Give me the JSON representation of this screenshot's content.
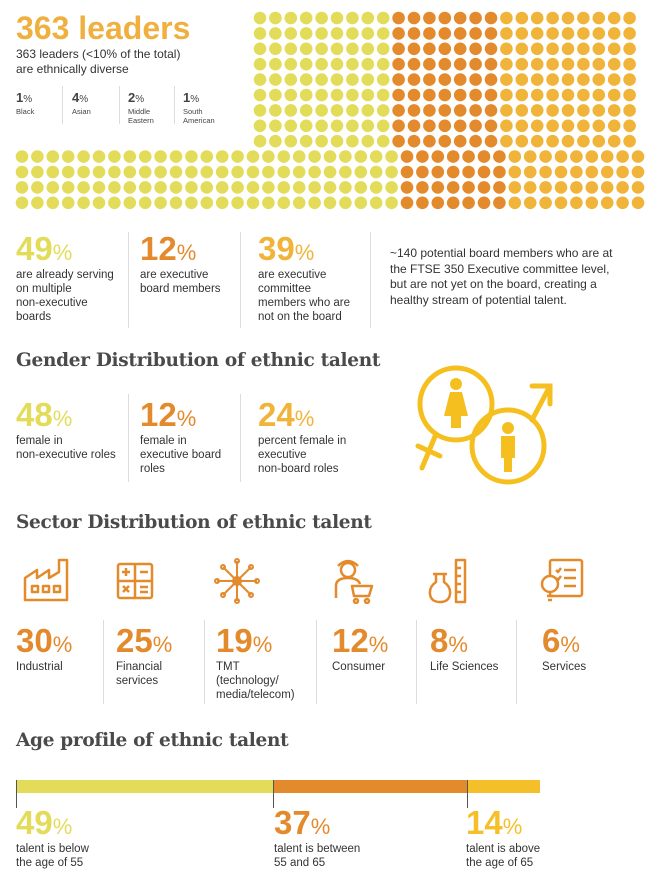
{
  "header": {
    "title": "363 leaders",
    "subtitle_line1": "363 leaders (<10% of the total)",
    "subtitle_line2": "are ethnically diverse",
    "breakdown": [
      {
        "num": "1",
        "pct": "%",
        "label1": "Black",
        "label2": ""
      },
      {
        "num": "4",
        "pct": "%",
        "label1": "Asian",
        "label2": ""
      },
      {
        "num": "2",
        "pct": "%",
        "label1": "Middle",
        "label2": "Eastern"
      },
      {
        "num": "1",
        "pct": "%",
        "label1": "South",
        "label2": "American"
      }
    ]
  },
  "dots": {
    "yellow": "#e3dc5a",
    "orange": "#e38a2c",
    "amber": "#f0b43a",
    "count_ratio_note_hidden": ""
  },
  "board_stats": [
    {
      "num": "49",
      "pct": "%",
      "lines": [
        "are already serving",
        "on multiple",
        "non-executive",
        "boards"
      ]
    },
    {
      "num": "12",
      "pct": "%",
      "lines": [
        "are executive",
        "board members"
      ]
    },
    {
      "num": "39",
      "pct": "%",
      "lines": [
        "are executive",
        "committee",
        "members who are",
        "not on the board"
      ]
    }
  ],
  "board_note": {
    "lines": [
      "~140 potential board members who are at",
      "the FTSE 350 Executive committee level,",
      "but are not yet on the board, creating a",
      "healthy stream of potential talent."
    ]
  },
  "gender": {
    "heading": "Gender Distribution of ethnic talent",
    "stats": [
      {
        "num": "48",
        "pct": "%",
        "lines": [
          "female in",
          "non-executive roles"
        ]
      },
      {
        "num": "12",
        "pct": "%",
        "lines": [
          "female in",
          "executive board",
          "roles"
        ]
      },
      {
        "num": "24",
        "pct": "%",
        "lines": [
          "percent female in",
          "executive",
          "non-board roles"
        ]
      }
    ],
    "icon": "gender-symbols-icon"
  },
  "sector": {
    "heading": "Sector Distribution of ethnic talent",
    "items": [
      {
        "icon": "factory-icon",
        "num": "30",
        "pct": "%",
        "lines": [
          "Industrial"
        ]
      },
      {
        "icon": "calculator-icon",
        "num": "25",
        "pct": "%",
        "lines": [
          "Financial",
          "services"
        ]
      },
      {
        "icon": "network-icon",
        "num": "19",
        "pct": "%",
        "lines": [
          "TMT",
          "(technology/",
          "media/telecom)"
        ]
      },
      {
        "icon": "shopper-icon",
        "num": "12",
        "pct": "%",
        "lines": [
          "Consumer"
        ]
      },
      {
        "icon": "lab-flask-icon",
        "num": "8",
        "pct": "%",
        "lines": [
          "Life Sciences"
        ]
      },
      {
        "icon": "idea-checklist-icon",
        "num": "6",
        "pct": "%",
        "lines": [
          "Services"
        ]
      }
    ]
  },
  "age": {
    "heading": "Age profile of ethnic talent",
    "segments": [
      {
        "value": 49,
        "color": "#e3dc5a",
        "num": "49",
        "pct": "%",
        "lines": [
          "talent is below",
          "the age of 55"
        ]
      },
      {
        "value": 37,
        "color": "#e38a2c",
        "num": "37",
        "pct": "%",
        "lines": [
          "talent is between",
          "55 and 65"
        ]
      },
      {
        "value": 14,
        "color": "#f5bf2a",
        "num": "14",
        "pct": "%",
        "lines": [
          "talent is above",
          "the age of 65"
        ]
      }
    ]
  }
}
